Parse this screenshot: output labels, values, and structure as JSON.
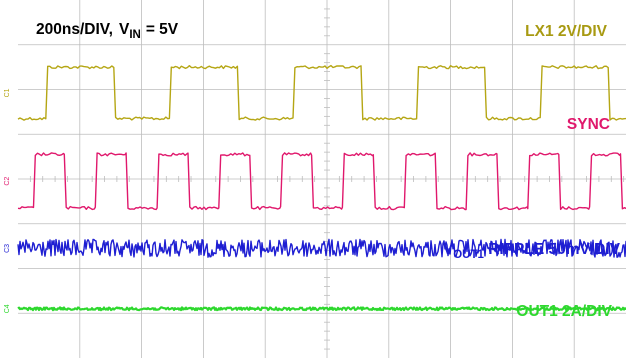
{
  "chart_data": {
    "type": "line",
    "title_parts": {
      "time_scale": "200ns/DIV,",
      "vin_symbol": "V",
      "vin_sub": "IN",
      "vin_value": "= 5V"
    },
    "x_divisions": 10,
    "y_divisions": 8,
    "time_per_div_ns": 200,
    "grid": true,
    "channels": [
      {
        "id": "lx1",
        "marker": "C1",
        "label": "LX1 2V/DIV",
        "color": "#b5a614",
        "waveform": "square",
        "period_ns": 400,
        "duty": 0.55,
        "high_div": 6.5,
        "low_div": 5.35
      },
      {
        "id": "sync",
        "marker": "C2",
        "label": "SYNC",
        "color": "#e0186c",
        "waveform": "square",
        "period_ns": 200,
        "duty": 0.5,
        "high_div": 4.55,
        "low_div": 3.35
      },
      {
        "id": "vout1",
        "marker": "C3",
        "label_main": "V",
        "label_sub": "OUT1",
        "label_rest": " RIPPLE 50mV/DIV",
        "color": "#1e1ed2",
        "waveform": "noise",
        "level_div": 2.45,
        "noise_amplitude_div": 0.2
      },
      {
        "id": "out1",
        "marker": "C4",
        "label": "OUT1 2A/DIV",
        "color": "#2ed82e",
        "waveform": "flat",
        "level_div": 1.1,
        "noise_amplitude_div": 0.03
      }
    ]
  }
}
